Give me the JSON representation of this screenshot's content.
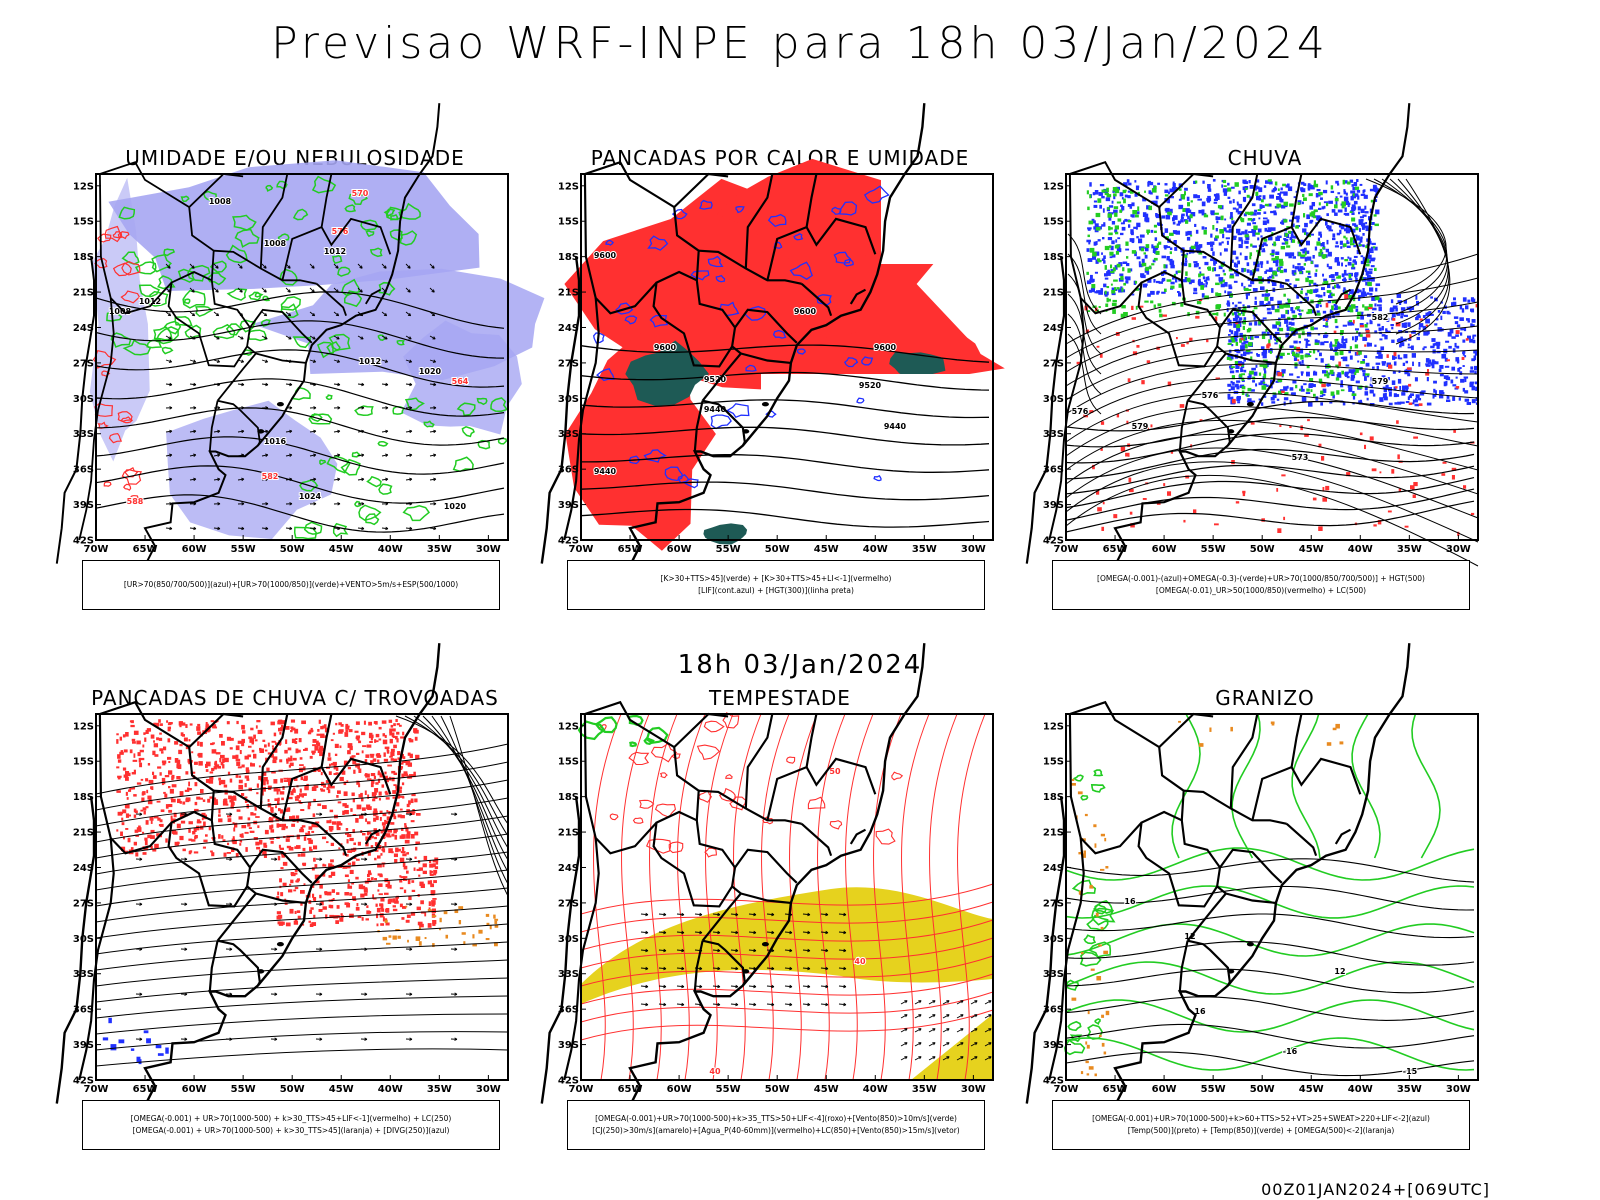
{
  "header": {
    "main_title": "Previsao WRF-INPE  para 18h 03/Jan/2024",
    "mid_title": "18h 03/Jan/2024",
    "footer_stamp": "00Z01JAN2024+[069UTC]"
  },
  "axes": {
    "lat_labels": [
      "12S",
      "15S",
      "18S",
      "21S",
      "24S",
      "27S",
      "30S",
      "33S",
      "36S",
      "39S",
      "42S"
    ],
    "lon_labels": [
      "70W",
      "65W",
      "60W",
      "55W",
      "50W",
      "45W",
      "40W",
      "35W",
      "30W"
    ]
  },
  "colors": {
    "red": "#ff3030",
    "green": "#22cc22",
    "blue": "#2030ff",
    "lavender": "#a6a6f2",
    "yellow": "#e6d21e",
    "darkteal": "#1e5a55",
    "orange": "#e88a20",
    "black": "#000000"
  },
  "panels": [
    {
      "title": "UMIDADE E/OU NEBULOSIDADE",
      "legend": [
        "[UR>70(850/700/500)](azul)+[UR>70(1000/850)](verde)+VENTO>5m/s+ESP(500/1000)"
      ],
      "contour_labels": [
        "1008",
        "1008",
        "1012",
        "1008",
        "1012",
        "1016",
        "1012",
        "1020",
        "1024",
        "1020",
        "570",
        "576",
        "564",
        "582",
        "588"
      ]
    },
    {
      "title": "PANCADAS POR CALOR E UMIDADE",
      "legend": [
        "[K>30+TTS>45](verde) + [K>30+TTS>45+LI<-1](vermelho)",
        "[LIF](cont.azul) + [HGT(300)](linha preta)"
      ],
      "contour_labels": [
        "9600",
        "9600",
        "9600",
        "9520",
        "9440",
        "9520",
        "9440",
        "9440",
        "9600"
      ]
    },
    {
      "title": "CHUVA",
      "legend": [
        "[OMEGA(-0.001)-(azul)+OMEGA(-0.3)-(verde)+UR>70(1000/850/700/500)] + HGT(500)",
        "[OMEGA(-0.01)_UR>50(1000/850)(vermelho) + LC(500)"
      ],
      "contour_labels": [
        "576",
        "579",
        "573",
        "582",
        "579",
        "576"
      ]
    },
    {
      "title": "PANCADAS DE CHUVA C/ TROVOADAS",
      "legend": [
        "[OMEGA(-0.001) + UR>70(1000-500) + k>30_TTS>45+LIF<-1](vermelho) + LC(250)",
        "[OMEGA(-0.001) + UR>70(1000-500) + k>30_TTS>45](laranja) + [DIVG(250)](azul)"
      ],
      "contour_labels": []
    },
    {
      "title": "TEMPESTADE",
      "legend": [
        "[OMEGA(-0.001)+UR>70(1000-500)+k>35_TTS>50+LIF<-4](roxo)+[Vento(850)>10m/s](verde)",
        "[CJ(250)>30m/s](amarelo)+[Agua_P(40-60mm)](vermelho)+LC(850)+[Vento(850)>15m/s](vetor)"
      ],
      "contour_labels": [
        "40",
        "50",
        "40"
      ]
    },
    {
      "title": "GRANIZO",
      "legend": [
        "[OMEGA(-0.001)+UR>70(1000-500)+k>60+TTS>52+VT>25+SWEAT>220+LIF<-2](azul)",
        "[Temp(500)](preto) + [Temp(850)](verde) + [OMEGA(500)<-2](laranja)"
      ],
      "contour_labels": [
        "16",
        "12",
        "12",
        "16",
        "-16",
        "-15"
      ]
    }
  ]
}
